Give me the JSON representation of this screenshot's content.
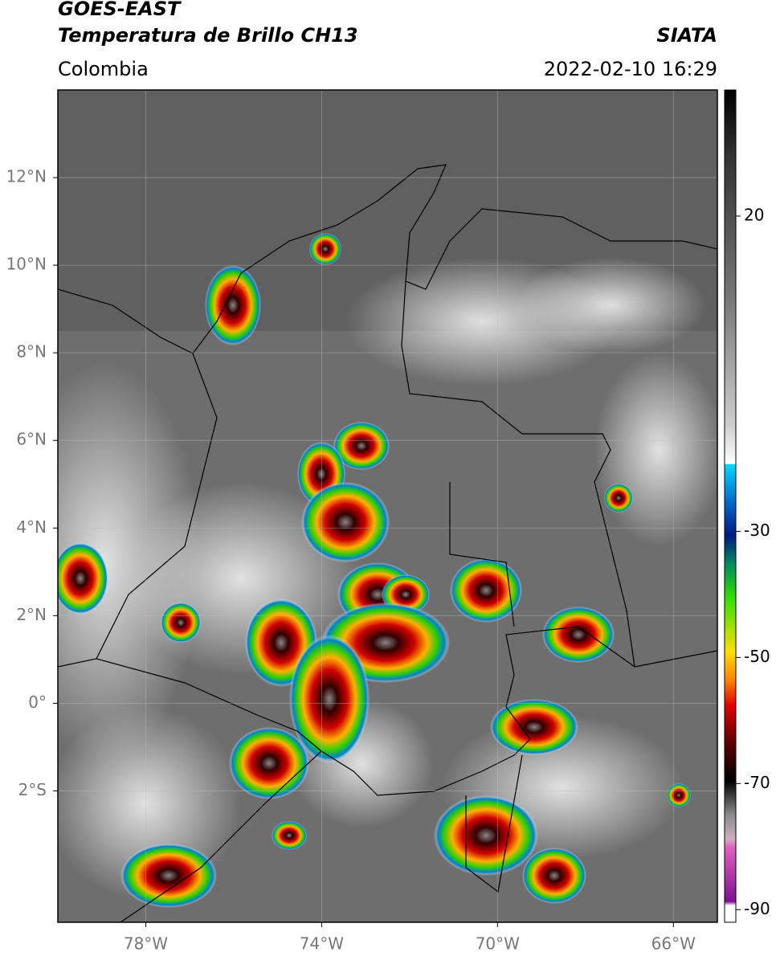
{
  "header": {
    "satellite": "GOES-EAST",
    "product": "Temperatura de Brillo CH13",
    "source": "SIATA",
    "region": "Colombia",
    "datetime": "2022-02-10 16:29"
  },
  "map": {
    "xlim": [
      -80,
      -65
    ],
    "ylim": [
      -5,
      14
    ],
    "xticks": [
      {
        "value": -78,
        "label": "78°W"
      },
      {
        "value": -74,
        "label": "74°W"
      },
      {
        "value": -70,
        "label": "70°W"
      },
      {
        "value": -66,
        "label": "66°W"
      }
    ],
    "yticks": [
      {
        "value": 12,
        "label": "12°N"
      },
      {
        "value": 10,
        "label": "10°N"
      },
      {
        "value": 8,
        "label": "8°N"
      },
      {
        "value": 6,
        "label": "6°N"
      },
      {
        "value": 4,
        "label": "4°N"
      },
      {
        "value": 2,
        "label": "2°N"
      },
      {
        "value": 0,
        "label": "0°"
      },
      {
        "value": -2,
        "label": "2°S"
      }
    ],
    "grid": true
  },
  "colorbar": {
    "clim": [
      -92,
      40
    ],
    "ticks": [
      20,
      -30,
      -50,
      -70,
      -90
    ]
  }
}
